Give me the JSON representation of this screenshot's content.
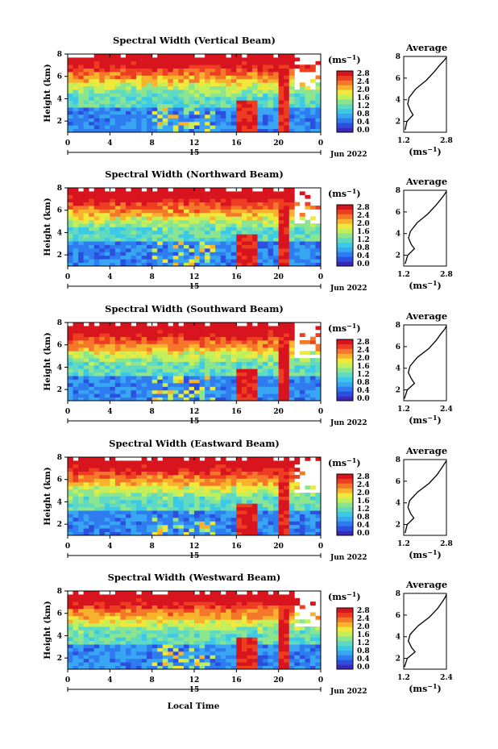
{
  "figure": {
    "xlabel": "Local Time",
    "date_label": "Jun 2022",
    "day_label": "15",
    "ylabel": "Height (km)",
    "colorbar_unit": "(ms",
    "unit_sup": "−1",
    "unit_close": ")",
    "avg_title": "Average",
    "xticks": [
      "0",
      "4",
      "8",
      "12",
      "16",
      "20",
      "0"
    ],
    "yticks": [
      "2",
      "4",
      "6",
      "8"
    ],
    "colorbar_ticks": [
      "2.8",
      "2.4",
      "2.0",
      "1.6",
      "1.2",
      "0.8",
      "0.4",
      "0.0"
    ],
    "colormap": [
      "#3b2ab8",
      "#2b50e0",
      "#2f7cf0",
      "#38a6f2",
      "#3cc9e8",
      "#5fd9c2",
      "#8be58e",
      "#c2ef5a",
      "#f0e83a",
      "#f8b22e",
      "#f5782a",
      "#ee3e22",
      "#d8141e"
    ]
  },
  "chart_data": [
    {
      "type": "heatmap",
      "title": "Spectral Width (Vertical Beam)",
      "xlabel": "Local Time",
      "ylabel": "Height (km)",
      "xlim": [
        0,
        24
      ],
      "ylim": [
        1,
        8
      ],
      "clim": [
        0.0,
        2.8
      ],
      "average_profile": {
        "xlim": [
          1.2,
          2.8
        ],
        "xticks": [
          "1.2",
          "2.8"
        ],
        "height": [
          1.2,
          2.0,
          2.6,
          3.0,
          3.6,
          4.2,
          5.0,
          5.8,
          6.6,
          7.2,
          7.6,
          7.9
        ],
        "value": [
          1.25,
          1.32,
          1.55,
          1.45,
          1.35,
          1.4,
          1.65,
          2.05,
          2.35,
          2.55,
          2.7,
          2.8
        ]
      }
    },
    {
      "type": "heatmap",
      "title": "Spectral Width (Northward Beam)",
      "xlabel": "Local Time",
      "ylabel": "Height (km)",
      "xlim": [
        0,
        24
      ],
      "ylim": [
        1,
        8
      ],
      "clim": [
        0.0,
        2.8
      ],
      "average_profile": {
        "xlim": [
          1.2,
          2.8
        ],
        "xticks": [
          "1.2",
          "2.8"
        ],
        "height": [
          1.2,
          2.0,
          2.6,
          3.0,
          3.6,
          4.2,
          5.0,
          5.8,
          6.6,
          7.2,
          7.6,
          7.9
        ],
        "value": [
          1.25,
          1.35,
          1.6,
          1.48,
          1.38,
          1.45,
          1.7,
          2.1,
          2.4,
          2.6,
          2.72,
          2.8
        ]
      }
    },
    {
      "type": "heatmap",
      "title": "Spectral Width (Southward Beam)",
      "xlabel": "Local Time",
      "ylabel": "Height (km)",
      "xlim": [
        0,
        24
      ],
      "ylim": [
        1,
        8
      ],
      "clim": [
        0.0,
        2.8
      ],
      "average_profile": {
        "xlim": [
          1.2,
          2.4
        ],
        "xticks": [
          "1.2",
          "2.4"
        ],
        "height": [
          1.2,
          2.0,
          2.6,
          3.0,
          3.6,
          4.2,
          5.0,
          5.8,
          6.6,
          7.2,
          7.6,
          7.9
        ],
        "value": [
          1.22,
          1.3,
          1.5,
          1.42,
          1.33,
          1.38,
          1.58,
          1.9,
          2.12,
          2.25,
          2.35,
          2.4
        ]
      }
    },
    {
      "type": "heatmap",
      "title": "Spectral Width (Eastward Beam)",
      "xlabel": "Local Time",
      "ylabel": "Height (km)",
      "xlim": [
        0,
        24
      ],
      "ylim": [
        1,
        8
      ],
      "clim": [
        0.0,
        2.8
      ],
      "average_profile": {
        "xlim": [
          1.2,
          2.8
        ],
        "xticks": [
          "1.2",
          "2.8"
        ],
        "height": [
          1.2,
          2.0,
          2.6,
          3.0,
          3.6,
          4.2,
          5.0,
          5.8,
          6.6,
          7.2,
          7.6,
          7.9
        ],
        "value": [
          1.25,
          1.33,
          1.58,
          1.46,
          1.36,
          1.42,
          1.72,
          2.15,
          2.45,
          2.62,
          2.72,
          2.8
        ]
      }
    },
    {
      "type": "heatmap",
      "title": "Spectral Width (Westward Beam)",
      "xlabel": "Local Time",
      "ylabel": "Height (km)",
      "xlim": [
        0,
        24
      ],
      "ylim": [
        1,
        8
      ],
      "clim": [
        0.0,
        2.8
      ],
      "average_profile": {
        "xlim": [
          1.2,
          2.4
        ],
        "xticks": [
          "1.2",
          "2.4"
        ],
        "height": [
          1.2,
          2.0,
          2.6,
          3.0,
          3.6,
          4.2,
          5.0,
          5.8,
          6.6,
          7.2,
          7.6,
          7.9
        ],
        "value": [
          1.22,
          1.3,
          1.52,
          1.42,
          1.33,
          1.38,
          1.6,
          1.92,
          2.15,
          2.28,
          2.36,
          2.4
        ]
      }
    }
  ]
}
